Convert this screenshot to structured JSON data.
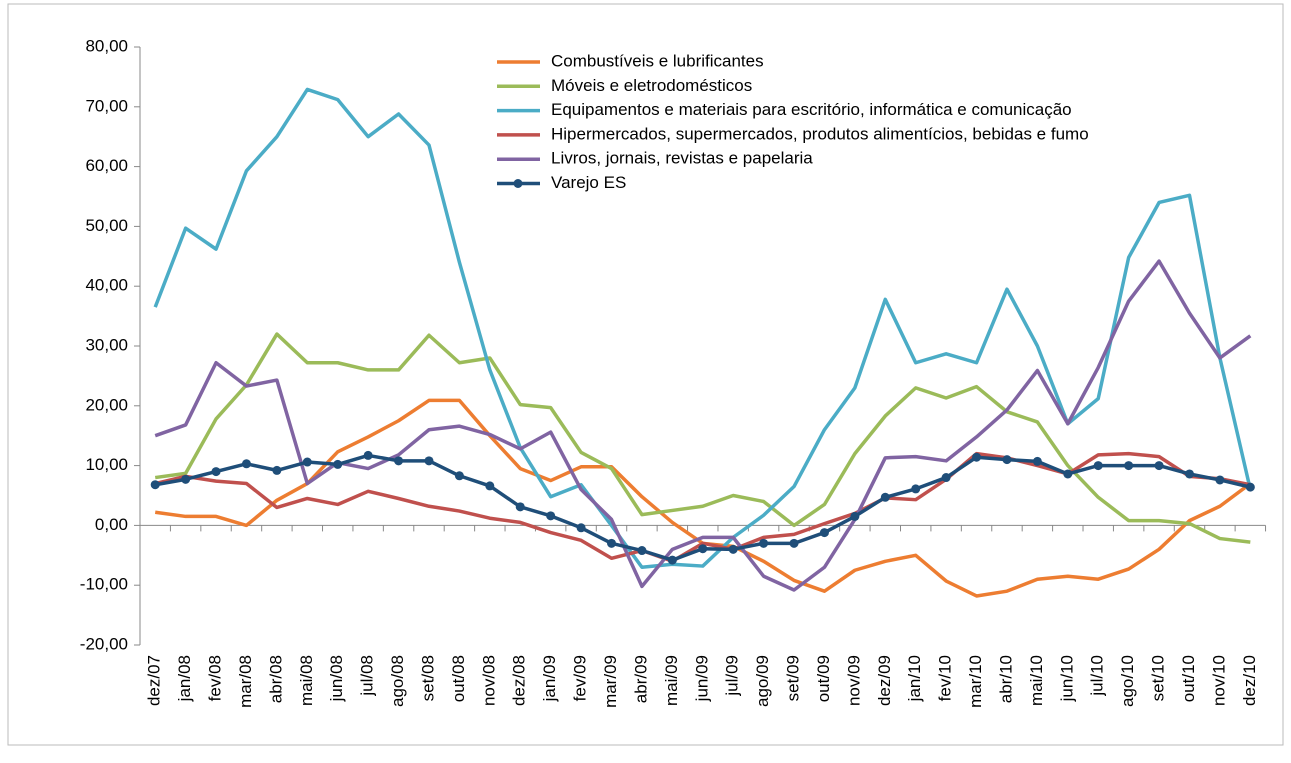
{
  "chart_data": {
    "type": "line",
    "categories": [
      "dez/07",
      "jan/08",
      "fev/08",
      "mar/08",
      "abr/08",
      "mai/08",
      "jun/08",
      "jul/08",
      "ago/08",
      "set/08",
      "out/08",
      "nov/08",
      "dez/08",
      "jan/09",
      "fev/09",
      "mar/09",
      "abr/09",
      "mai/09",
      "jun/09",
      "jul/09",
      "ago/09",
      "set/09",
      "out/09",
      "nov/09",
      "dez/09",
      "jan/10",
      "fev/10",
      "mar/10",
      "abr/10",
      "mai/10",
      "jun/10",
      "jul/10",
      "ago/10",
      "set/10",
      "out/10",
      "nov/10",
      "dez/10"
    ],
    "series": [
      {
        "name": "Combustíveis e lubrificantes",
        "color": "#ed7d31",
        "values": [
          2.2,
          1.5,
          1.5,
          0,
          4.2,
          7,
          12.3,
          14.8,
          17.5,
          20.9,
          20.9,
          15,
          9.5,
          7.5,
          9.8,
          9.8,
          4.8,
          0.5,
          -3,
          -3.5,
          -6,
          -9.2,
          -11,
          -7.5,
          -6,
          -5,
          -9.3,
          -11.8,
          -11,
          -9,
          -8.5,
          -9,
          -7.3,
          -4,
          0.8,
          3.2,
          7
        ]
      },
      {
        "name": "Móveis e eletrodomésticos",
        "color": "#9bbb59",
        "values": [
          8,
          8.7,
          17.8,
          23.5,
          32,
          27.2,
          27.2,
          26,
          26,
          31.8,
          27.2,
          28,
          20.2,
          19.7,
          12.2,
          9.5,
          1.8,
          2.5,
          3.2,
          5,
          4,
          0,
          3.5,
          12,
          18.3,
          23,
          21.3,
          23.2,
          19,
          17.3,
          10,
          4.7,
          0.8,
          0.8,
          0.3,
          -2.2,
          -2.8
        ]
      },
      {
        "name": "Equipamentos e materiais para escritório, informática e comunicação",
        "color": "#4bacc6",
        "values": [
          36.5,
          49.7,
          46.2,
          59.3,
          65,
          72.9,
          71.2,
          65,
          68.8,
          63.6,
          44,
          26,
          13,
          4.8,
          6.8,
          0,
          -7,
          -6.5,
          -6.8,
          -2,
          1.7,
          6.5,
          16,
          23,
          37.8,
          27.2,
          28.7,
          27.2,
          39.5,
          30,
          17,
          21.2,
          44.8,
          54,
          55.2,
          28,
          6
        ]
      },
      {
        "name": "Hipermercados, supermercados, produtos alimentícios, bebidas e fumo",
        "color": "#c0504d",
        "values": [
          7,
          8.2,
          7.4,
          7,
          3,
          4.5,
          3.5,
          5.7,
          4.5,
          3.2,
          2.4,
          1.2,
          0.5,
          -1.2,
          -2.5,
          -5.5,
          -4.2,
          -6,
          -3,
          -4,
          -2,
          -1.5,
          0.3,
          2,
          4.6,
          4.3,
          7.7,
          12,
          11.3,
          10,
          8.6,
          11.8,
          12,
          11.5,
          8.2,
          7.8,
          6.8
        ]
      },
      {
        "name": "Livros, jornais, revistas e papelaria",
        "color": "#8064a2",
        "values": [
          15,
          16.8,
          27.2,
          23.3,
          24.3,
          7,
          10.5,
          9.5,
          11.8,
          16,
          16.6,
          15.2,
          12.8,
          15.6,
          6,
          1,
          -10.2,
          -4,
          -2,
          -2,
          -8.5,
          -10.8,
          -7,
          1,
          11.3,
          11.5,
          10.8,
          14.8,
          19.3,
          25.9,
          17,
          26.4,
          37.5,
          44.2,
          35.5,
          28,
          31.7
        ]
      },
      {
        "name": "Varejo ES",
        "color": "#1f4e79",
        "marker": true,
        "values": [
          6.8,
          7.7,
          9,
          10.3,
          9.2,
          10.6,
          10.2,
          11.7,
          10.8,
          10.8,
          8.3,
          6.6,
          3.1,
          1.6,
          -0.4,
          -3,
          -4.2,
          -5.8,
          -3.9,
          -4,
          -3,
          -3,
          -1.2,
          1.5,
          4.7,
          6.1,
          8,
          11.4,
          11,
          10.7,
          8.6,
          10,
          10,
          10,
          8.6,
          7.6,
          6.4
        ]
      }
    ],
    "ylim": [
      -20,
      80
    ],
    "yticks": [
      {
        "value": -20,
        "label": "-20,00"
      },
      {
        "value": -10,
        "label": "-10,00"
      },
      {
        "value": 0,
        "label": "0,00"
      },
      {
        "value": 10,
        "label": "10,00"
      },
      {
        "value": 20,
        "label": "20,00"
      },
      {
        "value": 30,
        "label": "30,00"
      },
      {
        "value": 40,
        "label": "40,00"
      },
      {
        "value": 50,
        "label": "50,00"
      },
      {
        "value": 60,
        "label": "60,00"
      },
      {
        "value": 70,
        "label": "70,00"
      },
      {
        "value": 80,
        "label": "80,00"
      }
    ],
    "grid": false
  }
}
